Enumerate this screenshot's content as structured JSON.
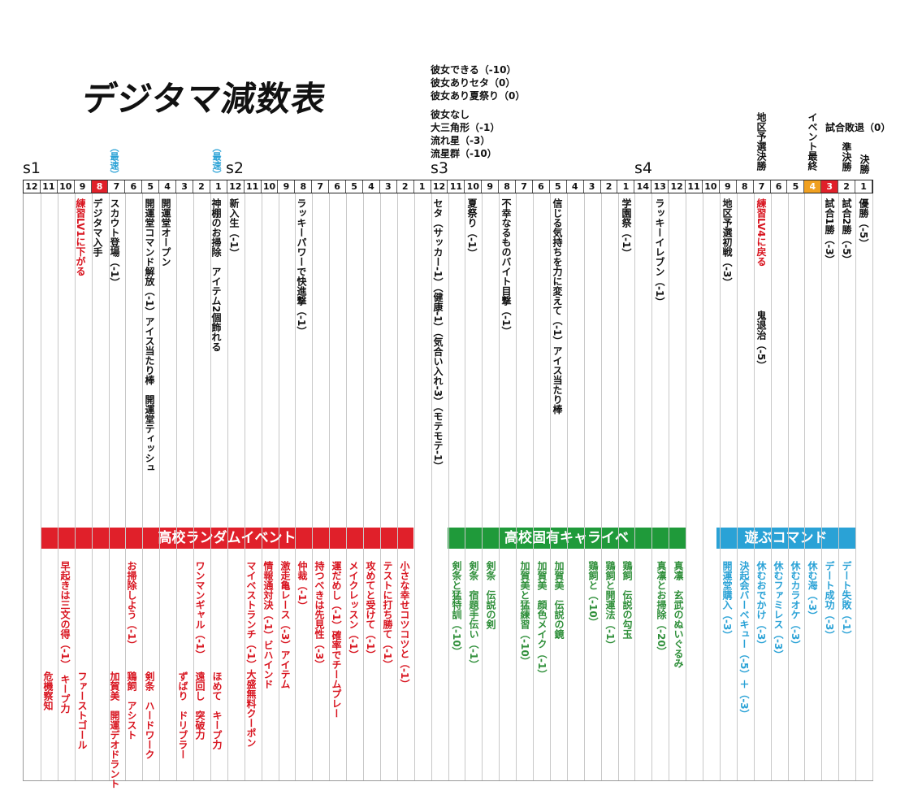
{
  "title": "デジタマ減数表",
  "notes_top": [
    "彼女できる（-10）",
    "彼女ありセタ（0）",
    "彼女あり夏祭り（0）"
  ],
  "notes_mid": [
    "彼女なし",
    "大三角形（-1）",
    "流れ星（-3）",
    "流星群（-10）"
  ],
  "season_labels": [
    "s1",
    "s2",
    "s3",
    "s4"
  ],
  "counts": [
    "12",
    "11",
    "10",
    "9",
    "8",
    "7",
    "6",
    "5",
    "4",
    "3",
    "2",
    "1",
    "12",
    "11",
    "10",
    "9",
    "8",
    "7",
    "6",
    "5",
    "4",
    "3",
    "2",
    "1",
    "12",
    "11",
    "10",
    "9",
    "8",
    "7",
    "6",
    "5",
    "4",
    "3",
    "2",
    "1",
    "14",
    "13",
    "12",
    "11",
    "10",
    "9",
    "8",
    "7",
    "6",
    "5",
    "4",
    "3",
    "2",
    "1"
  ],
  "highlight_colors": {
    "red": "#e0202a",
    "orange": "#f0a020",
    "border": "#222222"
  },
  "header_tags": {
    "fastest_1": "（最速）",
    "fastest_2": "（最速）",
    "regional_final": "地区予選決勝",
    "event_last": "イベント最終",
    "match_lose": "試合敗退（0）",
    "semi_final": "準決勝",
    "final": "決勝"
  },
  "events": {
    "e1": "練習LV1に下がる",
    "e2": "デジタマ入手",
    "e3": "スカウト登場（-1）",
    "e4": "開運堂コマンド解放（-1）アイス当たり棒　開運堂ティッシュ",
    "e5": "開運堂オープン",
    "e6": "神棚のお掃除　アイテム2個飾れる",
    "e7": "新入生（-1）",
    "e8": "ラッキーパワーで快進撃（-1）",
    "e9": "セタ（サッカー-1）（健康-1）（気合い入れ-3）（モテモテ-1）",
    "e10": "夏祭り（-1）",
    "e11": "不幸なるものバイト目撃（-1）",
    "e12": "信じる気持ちを力に変えて（-1）アイス当たり棒",
    "e13": "学園祭（-1）",
    "e14": "ラッキーイレブン（-1）",
    "e15": "地区予選初戦（-3）",
    "e16": "練習LV4に戻る",
    "e17": "鬼退治（-5）",
    "e18": "試合1勝（-3）",
    "e19": "試合2勝（-5）",
    "e20": "優勝（-5）"
  },
  "sections": {
    "random": {
      "title": "高校ランダムイベント",
      "color": "#e0202a"
    },
    "chara": {
      "title": "高校固有キャライベ",
      "color": "#1f9a3a"
    },
    "play": {
      "title": "遊ぶコマンド",
      "color": "#2aa2d6"
    }
  },
  "random_items": [
    "危機察知",
    "早起きは三文の得（-1）　キープ力",
    "ファーストゴール",
    "お掃除しよう（-1）",
    "鶏飼　アシスト",
    "加賀美　開運デオドラント",
    "剣条　ハードワーク",
    "ずばり　ドリブラー",
    "遠回し　突破力",
    "ワンマンギャル（-1）",
    "ほめて　キープ力",
    "マイベストランチ（-1）大盛無料クーポン",
    "情報通対決（-1）ビハインド",
    "激走亀レース（-3）アイテム",
    "仲裁（-1）",
    "持つべきは先見性（-3）",
    "運だめし（-1）確率でチームプレー",
    "メイクレッスン（-1）",
    "攻めてと受けて（-1）",
    "テストに打ち勝て（-1）",
    "小さな幸せコツコツと（-1）"
  ],
  "chara_items": [
    "剣条と猛特訓（-10）",
    "剣条　宿題手伝い（-1）",
    "剣条　伝説の剣",
    "加賀美と猛練習（-10）",
    "加賀美　顔色メイク（-1）",
    "加賀美　伝説の鏡",
    "鶏飼と（-10）",
    "鶏飼と開運法（-1）",
    "鶏飼　伝説の勾玉",
    "真凛とお掃除（-20）",
    "真凛　玄武のぬいぐるみ"
  ],
  "play_items": [
    "開運堂購入（-3）",
    "決起会バーベキュー（-5）＋（-3）",
    "休むおでかけ（-3）",
    "休むファミレス（-3）",
    "休むカラオケ（-3）",
    "休む海（-3）",
    "デート成功（-3）",
    "デート失敗（-1）"
  ]
}
